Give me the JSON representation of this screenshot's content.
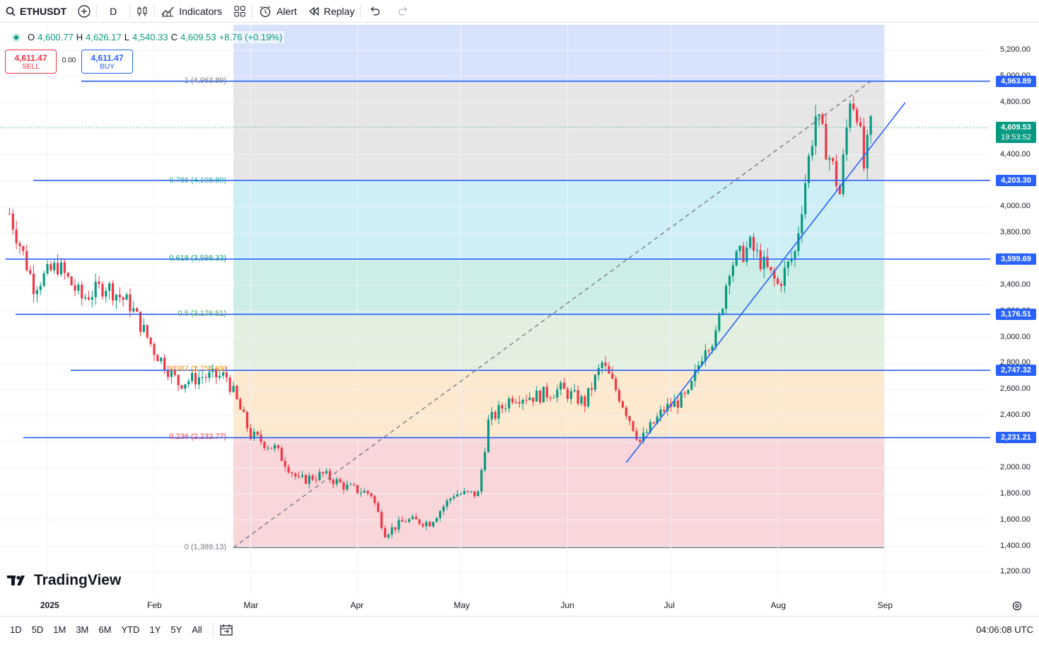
{
  "toolbar": {
    "symbol": "ETHUSDT",
    "interval": "D",
    "indicators": "Indicators",
    "alert": "Alert",
    "replay": "Replay"
  },
  "legend": {
    "o_label": "O",
    "o_val": "4,600.77",
    "h_label": "H",
    "h_val": "4,626.17",
    "l_label": "L",
    "l_val": "4,540.33",
    "c_label": "C",
    "c_val": "4,609.53",
    "change": "+8.76 (+0.19%)"
  },
  "trade": {
    "sell_price": "4,611.47",
    "sell_label": "SELL",
    "spread": "0.00",
    "buy_price": "4,611.47",
    "buy_label": "BUY"
  },
  "fib_labels": [
    "1 (4,963.89)",
    "0.786 (4,198.89)",
    "0.618 (3,598.33)",
    "0.5 (3,176.51)",
    "0.382 (2,754.69)",
    "0.236 (2,232.77)",
    "0 (1,389.13)"
  ],
  "price_ticks": [
    "5,200.00",
    "5,000.00",
    "4,800.00",
    "4,600.00",
    "4,400.00",
    "4,200.00",
    "4,000.00",
    "3,800.00",
    "3,600.00",
    "3,400.00",
    "3,200.00",
    "3,000.00",
    "2,800.00",
    "2,600.00",
    "2,400.00",
    "2,200.00",
    "2,000.00",
    "1,800.00",
    "1,600.00",
    "1,400.00",
    "1,200.00"
  ],
  "price_badges": [
    "4,963.89",
    "4,203.30",
    "3,599.69",
    "3,176.51",
    "2,747.32",
    "2,231.21"
  ],
  "current_price": {
    "price": "4,609.53",
    "countdown": "19:53:52"
  },
  "time_ticks": [
    "2025",
    "Feb",
    "Mar",
    "Apr",
    "May",
    "Jun",
    "Jul",
    "Aug",
    "Sep"
  ],
  "ranges": [
    "1D",
    "5D",
    "1M",
    "3M",
    "6M",
    "YTD",
    "1Y",
    "5Y",
    "All"
  ],
  "clock": "04:06:08 UTC",
  "logo_text": "TradingView",
  "colors": {
    "up": "#089981",
    "down": "#f23645",
    "line": "#2962ff",
    "bg": "#ffffff"
  },
  "chart_data": {
    "type": "candlestick",
    "symbol": "ETHUSDT",
    "timeframe": "D",
    "ylim": [
      1150,
      5380
    ],
    "x_range": [
      "2024-12-21",
      "2025-09-30"
    ],
    "closes_approx": [
      [
        "2024-12-21",
        3950
      ],
      [
        "2024-12-28",
        3400
      ],
      [
        "2025-01-04",
        3550
      ],
      [
        "2025-01-11",
        3300
      ],
      [
        "2025-01-18",
        3400
      ],
      [
        "2025-01-25",
        3250
      ],
      [
        "2025-02-01",
        2900
      ],
      [
        "2025-02-08",
        2650
      ],
      [
        "2025-02-15",
        2700
      ],
      [
        "2025-02-22",
        2700
      ],
      [
        "2025-03-01",
        2250
      ],
      [
        "2025-03-08",
        2150
      ],
      [
        "2025-03-15",
        1900
      ],
      [
        "2025-03-22",
        1950
      ],
      [
        "2025-03-29",
        1850
      ],
      [
        "2025-04-05",
        1800
      ],
      [
        "2025-04-09",
        1500
      ],
      [
        "2025-04-15",
        1600
      ],
      [
        "2025-04-22",
        1580
      ],
      [
        "2025-04-29",
        1800
      ],
      [
        "2025-05-06",
        1800
      ],
      [
        "2025-05-09",
        2350
      ],
      [
        "2025-05-16",
        2550
      ],
      [
        "2025-05-23",
        2550
      ],
      [
        "2025-05-30",
        2600
      ],
      [
        "2025-06-06",
        2500
      ],
      [
        "2025-06-11",
        2800
      ],
      [
        "2025-06-16",
        2550
      ],
      [
        "2025-06-22",
        2200
      ],
      [
        "2025-06-29",
        2450
      ],
      [
        "2025-07-06",
        2550
      ],
      [
        "2025-07-11",
        2950
      ],
      [
        "2025-07-14",
        3000
      ],
      [
        "2025-07-18",
        3550
      ],
      [
        "2025-07-24",
        3700
      ],
      [
        "2025-08-01",
        3400
      ],
      [
        "2025-08-06",
        3650
      ],
      [
        "2025-08-09",
        4200
      ],
      [
        "2025-08-12",
        4700
      ],
      [
        "2025-08-17",
        4300
      ],
      [
        "2025-08-19",
        4100
      ],
      [
        "2025-08-22",
        4850
      ],
      [
        "2025-08-24",
        4750
      ],
      [
        "2025-08-26",
        4300
      ],
      [
        "2025-08-28",
        4609.53
      ]
    ],
    "fibonacci": {
      "levels": [
        1,
        0.786,
        0.618,
        0.5,
        0.382,
        0.236,
        0
      ],
      "prices": [
        4963.89,
        4198.89,
        3598.33,
        3176.51,
        2754.69,
        2232.77,
        1389.13
      ],
      "start": [
        "2025-02-24",
        1389.13
      ],
      "end": [
        "2025-08-28",
        4963.89
      ]
    },
    "horizontal_lines": [
      4963.89,
      4203.3,
      3599.69,
      3176.51,
      2747.32,
      2231.21
    ],
    "trend_line": [
      [
        "2025-06-18",
        2040
      ],
      [
        "2025-09-07",
        4800
      ]
    ],
    "grid": true
  }
}
